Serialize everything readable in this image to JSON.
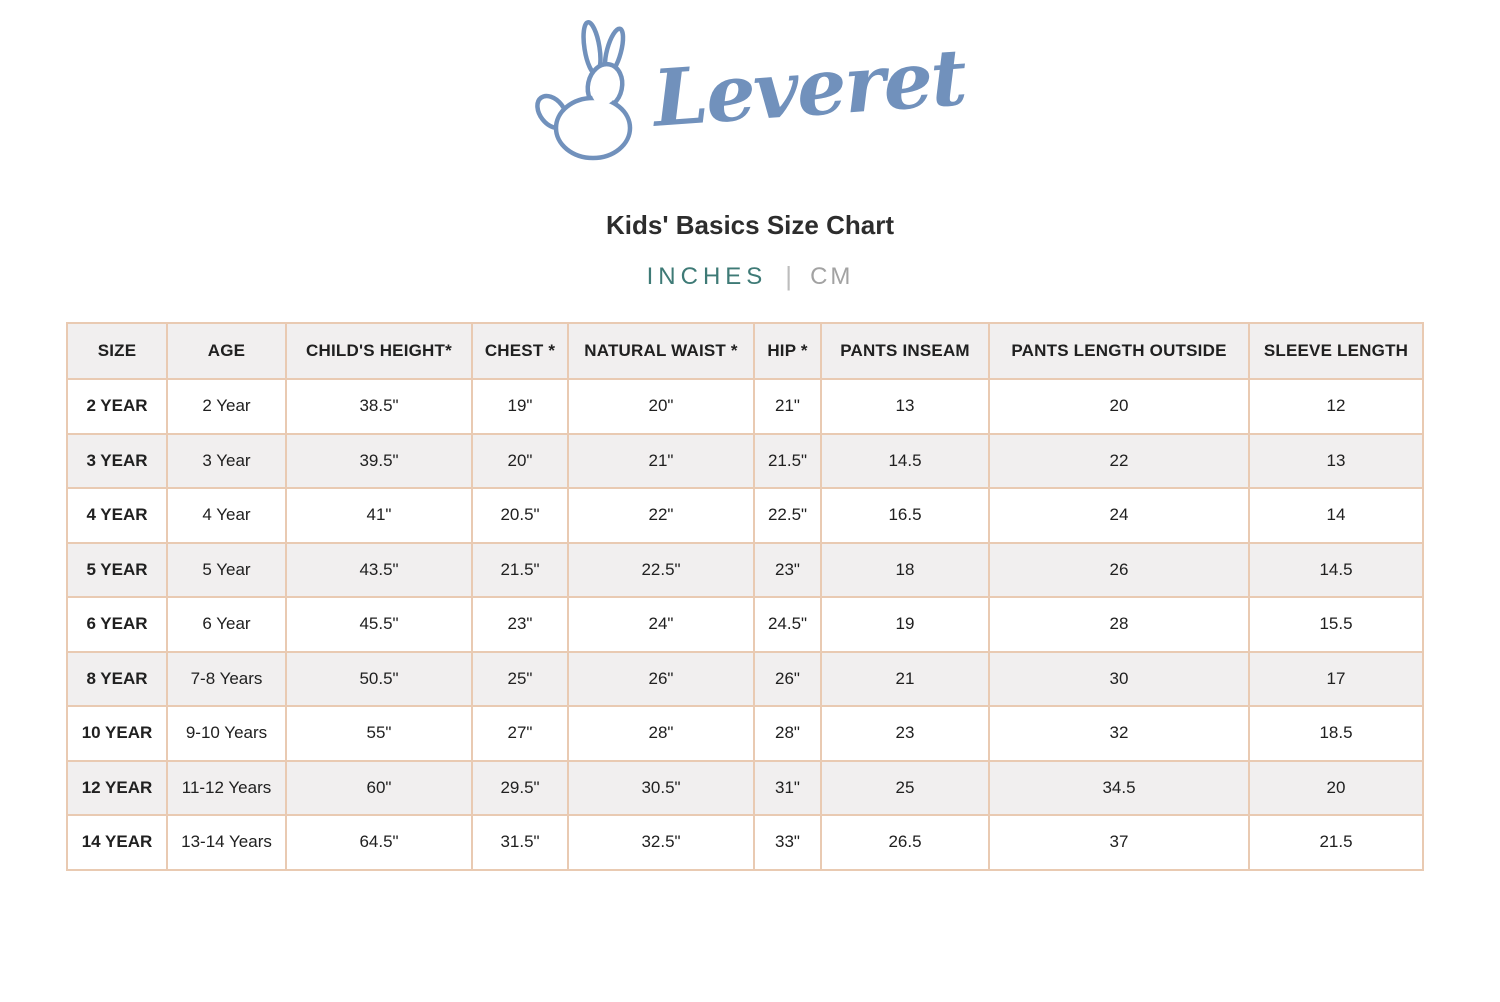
{
  "brand": {
    "name": "Leveret",
    "logo_icon": "bunny-icon",
    "logo_color": "#7191bc"
  },
  "title": "Kids' Basics Size Chart",
  "unit_toggle": {
    "divider": "|",
    "options": [
      {
        "label": "INCHES",
        "active": true,
        "color": "#3e7a76"
      },
      {
        "label": "CM",
        "active": false,
        "color": "#a2a2a2"
      }
    ]
  },
  "table": {
    "border_color": "#e9cab2",
    "stripe_color": "#f1efef",
    "columns": [
      "SIZE",
      "AGE",
      "CHILD'S HEIGHT*",
      "CHEST *",
      "NATURAL WAIST *",
      "HIP *",
      "PANTS INSEAM",
      "PANTS LENGTH OUTSIDE",
      "SLEEVE LENGTH"
    ],
    "rows": [
      [
        "2 YEAR",
        "2 Year",
        "38.5\"",
        "19\"",
        "20\"",
        "21\"",
        "13",
        "20",
        "12"
      ],
      [
        "3 YEAR",
        "3 Year",
        "39.5\"",
        "20\"",
        "21\"",
        "21.5\"",
        "14.5",
        "22",
        "13"
      ],
      [
        "4 YEAR",
        "4 Year",
        "41\"",
        "20.5\"",
        "22\"",
        "22.5\"",
        "16.5",
        "24",
        "14"
      ],
      [
        "5 YEAR",
        "5 Year",
        "43.5\"",
        "21.5\"",
        "22.5\"",
        "23\"",
        "18",
        "26",
        "14.5"
      ],
      [
        "6 YEAR",
        "6 Year",
        "45.5\"",
        "23\"",
        "24\"",
        "24.5\"",
        "19",
        "28",
        "15.5"
      ],
      [
        "8 YEAR",
        "7-8 Years",
        "50.5\"",
        "25\"",
        "26\"",
        "26\"",
        "21",
        "30",
        "17"
      ],
      [
        "10 YEAR",
        "9-10 Years",
        "55\"",
        "27\"",
        "28\"",
        "28\"",
        "23",
        "32",
        "18.5"
      ],
      [
        "12 YEAR",
        "11-12 Years",
        "60\"",
        "29.5\"",
        "30.5\"",
        "31\"",
        "25",
        "34.5",
        "20"
      ],
      [
        "14 YEAR",
        "13-14 Years",
        "64.5\"",
        "31.5\"",
        "32.5\"",
        "33\"",
        "26.5",
        "37",
        "21.5"
      ]
    ]
  }
}
